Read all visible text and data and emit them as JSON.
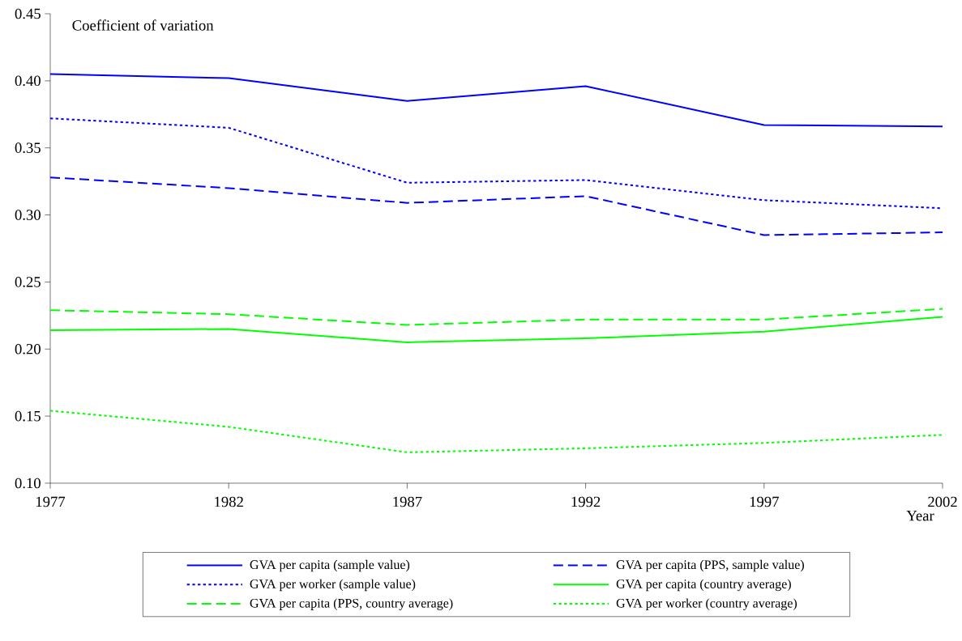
{
  "chart_data": {
    "type": "line",
    "xlabel": "Year",
    "ylabel": "Coefficient of variation",
    "x": [
      1977,
      1982,
      1987,
      1992,
      1997,
      2002
    ],
    "series": [
      {
        "name": "GVA per capita (sample value)",
        "color": "#0000ff",
        "line_style": "solid",
        "values": [
          0.405,
          0.402,
          0.385,
          0.396,
          0.367,
          0.366
        ]
      },
      {
        "name": "GVA per capita (PPS, sample value)",
        "color": "#0000ff",
        "line_style": "dashed",
        "values": [
          0.328,
          0.32,
          0.309,
          0.314,
          0.285,
          0.287
        ]
      },
      {
        "name": "GVA per worker (sample value)",
        "color": "#0000ff",
        "line_style": "dotted",
        "values": [
          0.372,
          0.365,
          0.324,
          0.326,
          0.311,
          0.305
        ]
      },
      {
        "name": "GVA per capita (country average)",
        "color": "#00ff00",
        "line_style": "solid",
        "values": [
          0.214,
          0.215,
          0.205,
          0.208,
          0.213,
          0.224
        ]
      },
      {
        "name": "GVA per capita (PPS, country average)",
        "color": "#00ff00",
        "line_style": "dashed",
        "values": [
          0.229,
          0.226,
          0.218,
          0.222,
          0.222,
          0.23
        ]
      },
      {
        "name": "GVA per worker (country average)",
        "color": "#00ff00",
        "line_style": "dotted",
        "values": [
          0.154,
          0.142,
          0.123,
          0.126,
          0.13,
          0.136
        ]
      }
    ],
    "xlim": [
      1977,
      2002
    ],
    "xticks": [
      1977,
      1982,
      1987,
      1992,
      1997,
      2002
    ],
    "ylim": [
      0.1,
      0.45
    ],
    "yticks": [
      {
        "value": 0.1,
        "label": "0.10"
      },
      0.15,
      {
        "value": 0.2,
        "label": "0.20"
      },
      0.25,
      {
        "value": 0.3,
        "label": "0.30"
      },
      0.35,
      {
        "value": 0.4,
        "label": "0.40"
      },
      0.45
    ],
    "grid": false,
    "marker": "none",
    "legend": "bottom"
  }
}
